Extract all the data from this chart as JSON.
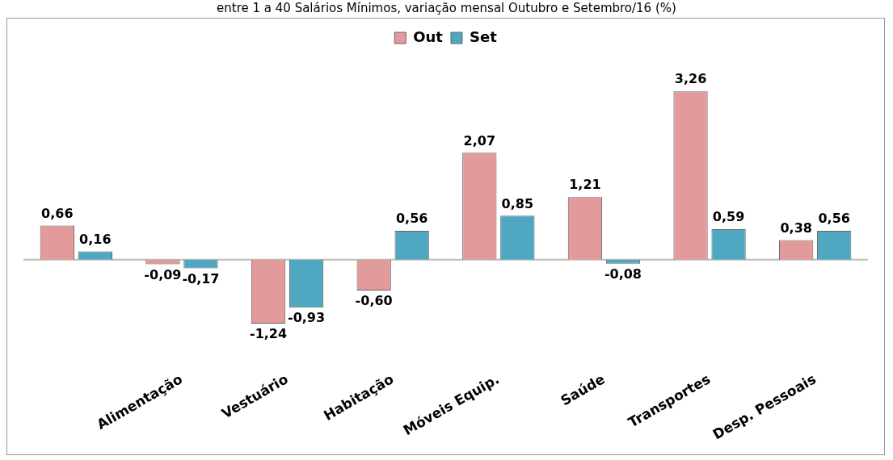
{
  "chart_data": {
    "type": "bar",
    "title": "entre 1 a 40 Salários Mínimos, variação mensal Outubro e Setembro/16 (%)",
    "categories": [
      null,
      "Alimentação",
      "Vestuário",
      "Habitação",
      "Móveis Equip.",
      "Saúde",
      "Transportes",
      "Desp. Pessoais"
    ],
    "series": [
      {
        "name": "Out",
        "color": "#e39a9a",
        "values": [
          0.66,
          -0.09,
          -1.24,
          -0.6,
          2.07,
          1.21,
          3.26,
          0.38
        ],
        "value_labels": [
          "0,66",
          "-0,09",
          "-1,24",
          "-0,60",
          "2,07",
          "1,21",
          "3,26",
          "0,38"
        ]
      },
      {
        "name": "Set",
        "color": "#4fa8c2",
        "values": [
          0.16,
          -0.17,
          -0.93,
          0.56,
          0.85,
          -0.08,
          0.59,
          0.56
        ],
        "value_labels": [
          "0,16",
          "-0,17",
          "-0,93",
          "0,56",
          "0,85",
          "-0,08",
          "0,59",
          "0,56"
        ]
      }
    ],
    "data_labels": true,
    "legend": "top",
    "grid": false,
    "tick_labels": "x"
  }
}
